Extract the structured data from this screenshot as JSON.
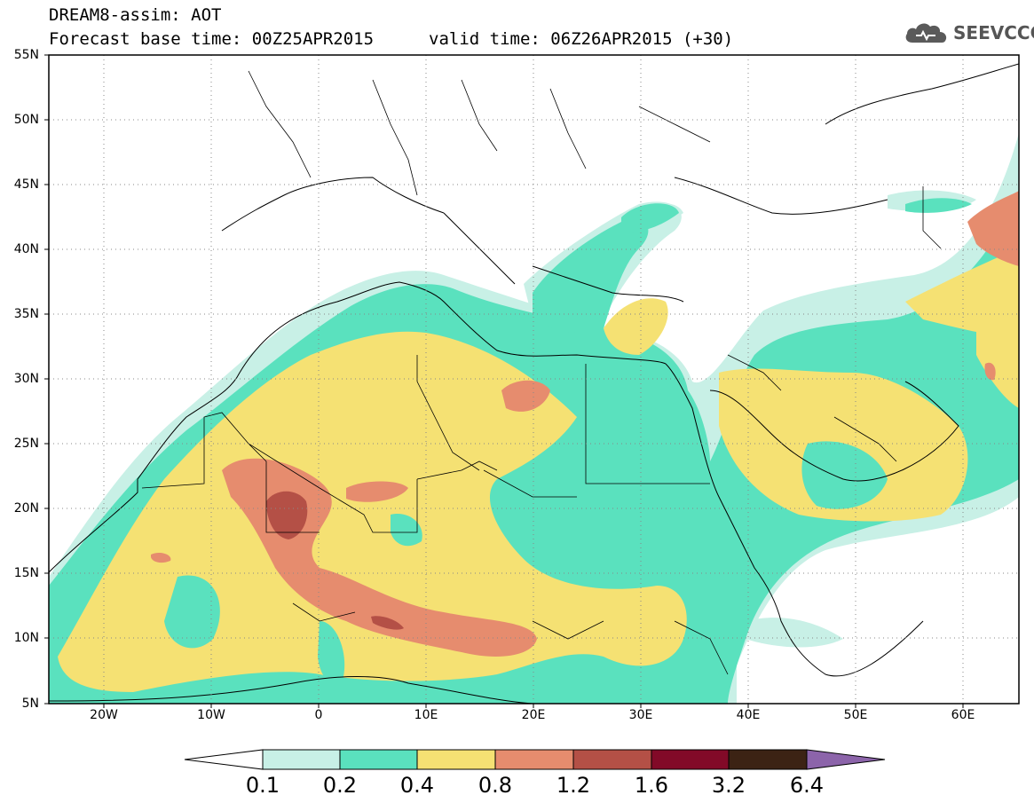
{
  "header": {
    "title": "DREAM8-assim: AOT",
    "base_time": "Forecast base time: 00Z25APR2015",
    "valid_time": "valid time: 06Z26APR2015 (+30)",
    "logo_text": "SEEVCCC",
    "logo_icon": "cloud-icon",
    "logo_color": "#555555"
  },
  "map": {
    "region": "Europe / North Africa / Middle East",
    "lon_range": [
      -25,
      65
    ],
    "lat_range": [
      5,
      55
    ],
    "lat_labels": [
      "55N",
      "50N",
      "45N",
      "40N",
      "35N",
      "30N",
      "25N",
      "20N",
      "15N",
      "10N",
      "5N"
    ],
    "lon_labels": [
      "20W",
      "10W",
      "0",
      "10E",
      "20E",
      "30E",
      "40E",
      "50E",
      "60E"
    ],
    "grid": "dotted"
  },
  "colorbar": {
    "labels": [
      "0.1",
      "0.2",
      "0.4",
      "0.8",
      "1.2",
      "1.6",
      "3.2",
      "6.4"
    ],
    "colors": [
      "#c8f0e6",
      "#5ae1be",
      "#f5e173",
      "#e68c6e",
      "#b45046",
      "#820a28",
      "#3c2314"
    ],
    "under_color": "#ffffff",
    "over_color": "#8c64aa"
  }
}
